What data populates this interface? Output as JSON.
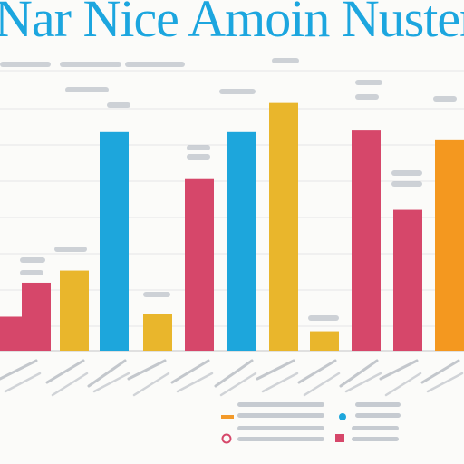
{
  "chart_data": {
    "type": "bar",
    "title": "Nar Nice Amoin Nustery a Ren",
    "xlabel": "",
    "ylabel": "",
    "ylim": [
      0,
      100
    ],
    "grid": true,
    "legend": "bottom-right",
    "bars": [
      {
        "value": 14,
        "color": "#d6476a"
      },
      {
        "value": 28,
        "color": "#d6476a"
      },
      {
        "value": 33,
        "color": "#e9b62c"
      },
      {
        "value": 90,
        "color": "#1da6dc"
      },
      {
        "value": 15,
        "color": "#e9b62c"
      },
      {
        "value": 71,
        "color": "#d6476a"
      },
      {
        "value": 90,
        "color": "#1da6dc"
      },
      {
        "value": 102,
        "color": "#e9b62c"
      },
      {
        "value": 8,
        "color": "#e9b62c"
      },
      {
        "value": 91,
        "color": "#d6476a"
      },
      {
        "value": 58,
        "color": "#d6476a"
      },
      {
        "value": 87,
        "color": "#f4981f"
      }
    ],
    "legend_markers": [
      {
        "shape": "dash",
        "color": "#f39a2a"
      },
      {
        "shape": "dot",
        "color": "#1da6dc"
      },
      {
        "shape": "ring",
        "color": "#d6476a"
      },
      {
        "shape": "square",
        "color": "#d6476a"
      }
    ]
  }
}
